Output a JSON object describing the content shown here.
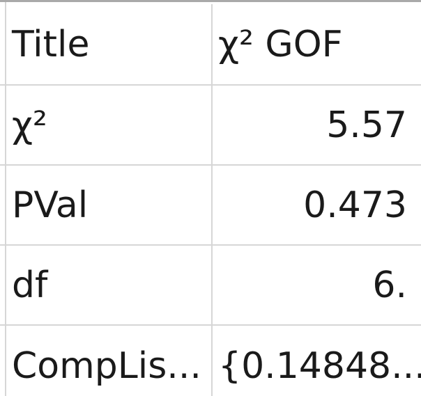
{
  "stat_results": {
    "rows": [
      {
        "name": "Title",
        "value": "χ² GOF"
      },
      {
        "name": "χ²",
        "value": "5.57"
      },
      {
        "name": "PVal",
        "value": "0.473"
      },
      {
        "name": "df",
        "value": "6."
      },
      {
        "name": "CompLis...",
        "value": "{0.14848..."
      }
    ]
  },
  "colors": {
    "grid_line": "#d6d6d6",
    "top_border": "#a9a9a9",
    "text": "#1a1a1a",
    "background": "#ffffff"
  }
}
